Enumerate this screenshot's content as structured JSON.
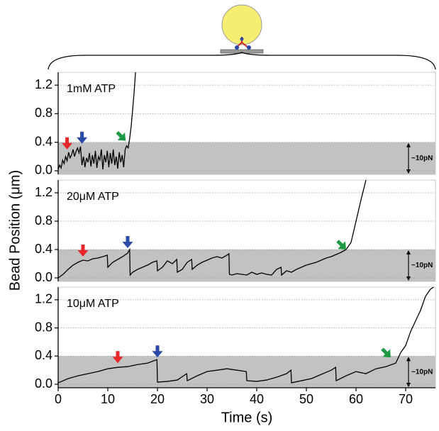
{
  "chart_data": [
    {
      "type": "line",
      "label": "1mM ATP",
      "color": "#000000",
      "grid": true,
      "shaded_range": [
        0,
        0.4
      ],
      "force_label": "~10pN",
      "xlim": [
        0,
        76
      ],
      "ylim": [
        -0.05,
        1.38
      ],
      "yticks": [
        {
          "value": 0,
          "label": "0.0"
        },
        0.4,
        0.8,
        1.2
      ],
      "x": [
        0,
        0.3,
        0.6,
        0.9,
        1.2,
        1.5,
        1.8,
        2.1,
        2.4,
        2.7,
        3.0,
        3.3,
        3.6,
        3.9,
        4.2,
        4.5,
        4.8,
        5.1,
        5.4,
        5.7,
        6.0,
        6.3,
        6.6,
        6.9,
        7.2,
        7.5,
        7.8,
        8.1,
        8.4,
        8.7,
        9.0,
        9.3,
        9.6,
        9.9,
        10.2,
        10.5,
        10.8,
        11.1,
        11.4,
        11.7,
        12.0,
        12.3,
        12.6,
        12.9,
        13.2,
        13.5,
        13.8,
        14.1,
        14.4,
        14.7,
        15.0,
        15.3,
        15.6
      ],
      "values": [
        0.02,
        0.08,
        0.04,
        0.15,
        0.1,
        0.2,
        0.14,
        0.26,
        0.18,
        0.22,
        0.3,
        0.2,
        0.27,
        0.32,
        0.25,
        0.34,
        0.08,
        0.2,
        0.05,
        0.18,
        0.12,
        0.25,
        0.06,
        0.22,
        0.1,
        0.28,
        0.04,
        0.2,
        0.15,
        0.3,
        0.02,
        0.22,
        0.12,
        0.28,
        0.05,
        0.25,
        0.1,
        0.3,
        0.08,
        0.2,
        0.03,
        0.26,
        0.12,
        0.22,
        0.05,
        0.3,
        0.35,
        0.32,
        0.45,
        0.62,
        0.85,
        1.1,
        1.4
      ],
      "events": [
        {
          "x": 1.8,
          "y": 0.3,
          "color": "#e8262a",
          "direction": "down"
        },
        {
          "x": 4.8,
          "y": 0.38,
          "color": "#2c4aa8",
          "direction": "down"
        },
        {
          "x": 13.6,
          "y": 0.42,
          "color": "#1e9a45",
          "direction": "down-right"
        }
      ]
    },
    {
      "type": "line",
      "label": "20μM ATP",
      "color": "#000000",
      "grid": true,
      "shaded_range": [
        0,
        0.4
      ],
      "force_label": "~10pN",
      "ylabel": "Bead Position (μm)",
      "xlim": [
        0,
        76
      ],
      "ylim": [
        -0.05,
        1.38
      ],
      "yticks": [
        {
          "value": 0,
          "label": "0.0"
        },
        0.4,
        0.8,
        1.2
      ],
      "x": [
        0,
        1,
        2,
        3,
        4,
        5,
        6,
        7,
        8,
        9,
        9.9,
        10,
        11,
        12,
        13,
        14,
        14.4,
        14.5,
        15,
        16,
        17,
        18,
        19,
        19.9,
        20,
        21,
        22,
        23,
        23.9,
        24,
        25,
        26,
        26.9,
        27,
        28,
        29,
        30,
        31,
        32,
        33,
        34,
        34.4,
        34.5,
        35,
        36,
        37,
        38,
        39,
        40,
        41,
        42,
        43,
        44,
        44.9,
        45,
        46,
        47,
        48,
        49,
        50,
        51,
        52,
        53,
        54,
        55,
        56,
        57,
        58,
        59,
        60,
        61,
        62
      ],
      "values": [
        0,
        0.05,
        0.12,
        0.18,
        0.22,
        0.25,
        0.24,
        0.27,
        0.28,
        0.3,
        0.32,
        0.15,
        0.22,
        0.26,
        0.3,
        0.35,
        0.4,
        0.04,
        0.08,
        0.12,
        0.15,
        0.18,
        0.22,
        0.24,
        0.1,
        0.15,
        0.24,
        0.2,
        0.26,
        0.08,
        0.12,
        0.22,
        0.26,
        0.12,
        0.18,
        0.22,
        0.25,
        0.28,
        0.3,
        0.28,
        0.32,
        0.34,
        0.05,
        0.04,
        0.06,
        0.05,
        0.04,
        0.08,
        0.05,
        0.07,
        0.05,
        0.04,
        0.12,
        0.15,
        0.04,
        0.1,
        0.08,
        0.12,
        0.15,
        0.18,
        0.2,
        0.22,
        0.25,
        0.28,
        0.3,
        0.33,
        0.36,
        0.4,
        0.5,
        0.8,
        1.1,
        1.38
      ],
      "events": [
        {
          "x": 5,
          "y": 0.3,
          "color": "#e8262a",
          "direction": "down"
        },
        {
          "x": 14,
          "y": 0.42,
          "color": "#2c4aa8",
          "direction": "down"
        },
        {
          "x": 58,
          "y": 0.4,
          "color": "#1e9a45",
          "direction": "down-right"
        }
      ]
    },
    {
      "type": "line",
      "label": "10μM ATP",
      "color": "#000000",
      "grid": true,
      "shaded_range": [
        0,
        0.4
      ],
      "force_label": "~10pN",
      "xlabel": "Time (s)",
      "xlim": [
        0,
        76
      ],
      "xticks": [
        0,
        10,
        20,
        30,
        40,
        50,
        60,
        70
      ],
      "ylim": [
        -0.05,
        1.38
      ],
      "yticks": [
        {
          "value": 0,
          "label": "0.0"
        },
        0.4,
        0.8,
        1.2
      ],
      "x": [
        0,
        2,
        4,
        6,
        8,
        10,
        12,
        14,
        16,
        18,
        19.9,
        20,
        22,
        24,
        25.9,
        26,
        28,
        30,
        32,
        34,
        36,
        37.9,
        38,
        40,
        42,
        44,
        46,
        46.9,
        47,
        49,
        51,
        53,
        55,
        55.9,
        56,
        58,
        60,
        62,
        64,
        66,
        68,
        69,
        70,
        71,
        72,
        73,
        74,
        75,
        76
      ],
      "values": [
        0.02,
        0.08,
        0.12,
        0.15,
        0.18,
        0.22,
        0.24,
        0.25,
        0.28,
        0.3,
        0.35,
        0.03,
        0.04,
        0.06,
        0.15,
        0.05,
        0.12,
        0.18,
        0.2,
        0.22,
        0.2,
        0.18,
        0.05,
        0.04,
        0.06,
        0.1,
        0.15,
        0.2,
        0.02,
        0.05,
        0.08,
        0.14,
        0.2,
        0.24,
        0.05,
        0.12,
        0.18,
        0.15,
        0.22,
        0.25,
        0.3,
        0.45,
        0.55,
        0.75,
        0.9,
        1.05,
        1.25,
        1.35,
        1.4
      ],
      "events": [
        {
          "x": 12,
          "y": 0.3,
          "color": "#e8262a",
          "direction": "down"
        },
        {
          "x": 20,
          "y": 0.38,
          "color": "#2c4aa8",
          "direction": "down"
        },
        {
          "x": 67,
          "y": 0.38,
          "color": "#1e9a45",
          "direction": "down-right"
        }
      ]
    }
  ]
}
